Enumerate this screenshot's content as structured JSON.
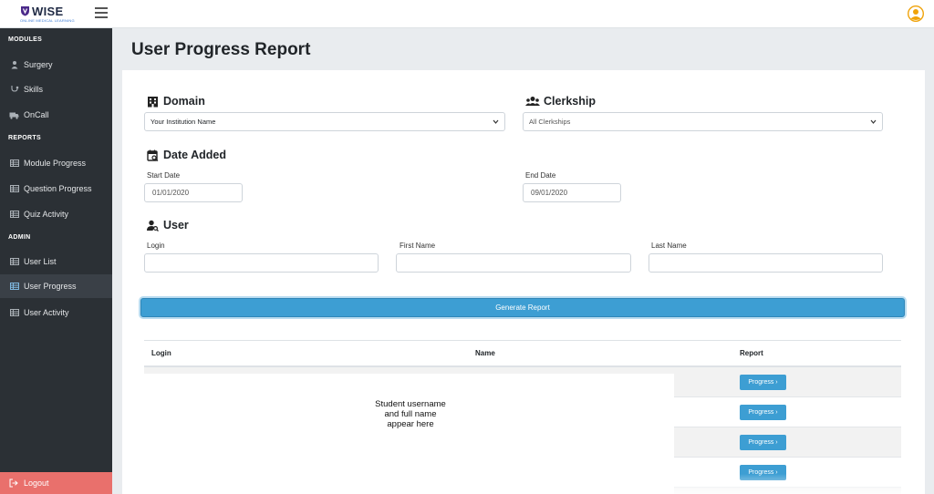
{
  "header": {
    "brand": "WISE",
    "tagline": "ONLINE MEDICAL LEARNING",
    "icons": [
      "shield-logo",
      "hamburger-icon",
      "user-avatar-icon"
    ],
    "accent_color": "#f0a30a"
  },
  "sidebar": {
    "sections": [
      {
        "title": "MODULES",
        "items": [
          {
            "label": "Surgery",
            "icon": "surgeon-icon"
          },
          {
            "label": "Skills",
            "icon": "stethoscope-icon"
          },
          {
            "label": "OnCall",
            "icon": "ambulance-icon"
          }
        ]
      },
      {
        "title": "REPORTS",
        "items": [
          {
            "label": "Module Progress",
            "icon": "table-icon"
          },
          {
            "label": "Question Progress",
            "icon": "table-icon"
          },
          {
            "label": "Quiz Activity",
            "icon": "table-icon"
          }
        ]
      },
      {
        "title": "ADMIN",
        "items": [
          {
            "label": "User List",
            "icon": "table-icon"
          },
          {
            "label": "User Progress",
            "icon": "table-icon",
            "active": true
          },
          {
            "label": "User Activity",
            "icon": "table-icon"
          }
        ]
      }
    ],
    "logout": "Logout",
    "colors": {
      "background": "#2b3035",
      "logout": "#e9706c"
    }
  },
  "page": {
    "title": "User Progress Report"
  },
  "form": {
    "domain": {
      "heading": "Domain",
      "value": "Your Institution Name"
    },
    "clerkship": {
      "heading": "Clerkship",
      "value": "All Clerkships"
    },
    "date_added": {
      "heading": "Date Added",
      "start_label": "Start Date",
      "start_value": "01/01/2020",
      "end_label": "End Date",
      "end_value": "09/01/2020"
    },
    "user": {
      "heading": "User",
      "login_label": "Login",
      "first_name_label": "First Name",
      "last_name_label": "Last Name"
    },
    "generate_button": "Generate Report",
    "button_color": "#3d9ed3"
  },
  "table": {
    "columns": [
      "Login",
      "Name",
      "Report"
    ],
    "rows": [
      {
        "action": "Progress ›"
      },
      {
        "action": "Progress ›"
      },
      {
        "action": "Progress ›"
      },
      {
        "action": "Progress ›"
      }
    ],
    "placeholder_note": [
      "Student username",
      "and full name",
      "appear here"
    ]
  }
}
